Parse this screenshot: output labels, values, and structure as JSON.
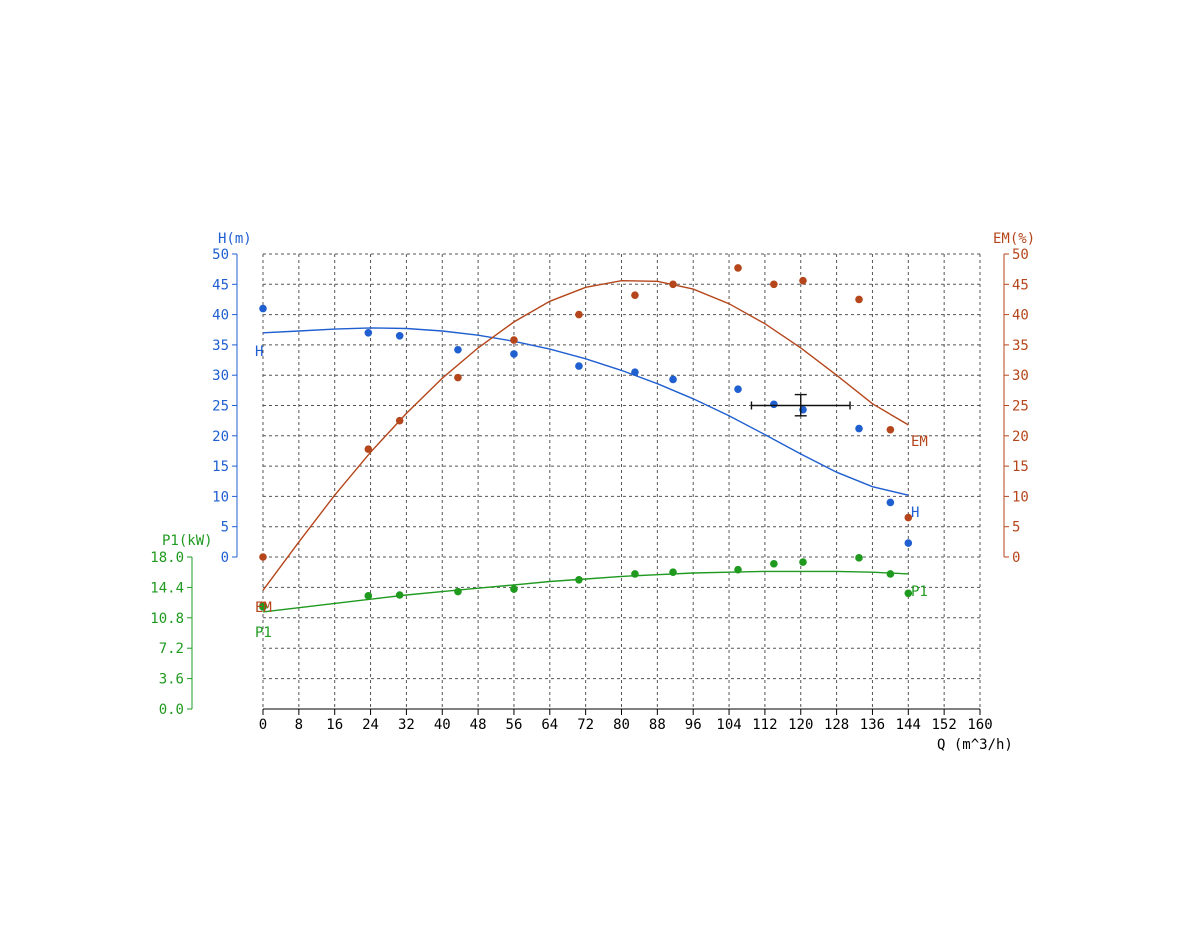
{
  "chart_data": {
    "type": "line",
    "x_axis": {
      "label": "Q (m^3/h)",
      "ticks": [
        "0",
        "8",
        "16",
        "24",
        "32",
        "40",
        "48",
        "56",
        "64",
        "72",
        "80",
        "88",
        "96",
        "104",
        "112",
        "120",
        "128",
        "136",
        "144",
        "152",
        "160"
      ],
      "range": [
        0,
        160
      ]
    },
    "axes": {
      "H": {
        "label": "H(m)",
        "ticks": [
          "0",
          "5",
          "10",
          "15",
          "20",
          "25",
          "30",
          "35",
          "40",
          "45",
          "50"
        ],
        "range": [
          0,
          50
        ],
        "color": "#1f5fd0"
      },
      "EM": {
        "label": "EM(%)",
        "ticks": [
          "0",
          "5",
          "10",
          "15",
          "20",
          "25",
          "30",
          "35",
          "40",
          "45",
          "50"
        ],
        "range": [
          0,
          50
        ],
        "color": "#b5461b"
      },
      "P1": {
        "label": "P1(kW)",
        "ticks": [
          "0.0",
          "3.6",
          "7.2",
          "10.8",
          "14.4",
          "18.0"
        ],
        "range": [
          0,
          18
        ],
        "color": "#1f9a1f"
      }
    },
    "grid": true,
    "series": [
      {
        "name": "H",
        "axis": "H",
        "color": "#1f5fd0",
        "curve": [
          [
            0,
            37.0
          ],
          [
            8,
            37.3
          ],
          [
            16,
            37.6
          ],
          [
            24,
            37.8
          ],
          [
            32,
            37.7
          ],
          [
            40,
            37.3
          ],
          [
            48,
            36.6
          ],
          [
            56,
            35.6
          ],
          [
            64,
            34.3
          ],
          [
            72,
            32.7
          ],
          [
            80,
            30.8
          ],
          [
            88,
            28.6
          ],
          [
            96,
            26.1
          ],
          [
            104,
            23.3
          ],
          [
            112,
            20.2
          ],
          [
            120,
            17.0
          ],
          [
            128,
            14.0
          ],
          [
            136,
            11.6
          ],
          [
            144,
            10.2
          ]
        ],
        "points": [
          [
            0,
            41
          ],
          [
            23.5,
            37
          ],
          [
            30.5,
            36.5
          ],
          [
            43.5,
            34.2
          ],
          [
            56,
            33.5
          ],
          [
            70.5,
            31.5
          ],
          [
            83,
            30.5
          ],
          [
            91.5,
            29.3
          ],
          [
            106,
            27.7
          ],
          [
            114,
            25.2
          ],
          [
            120.5,
            24.3
          ],
          [
            133,
            21.2
          ],
          [
            140,
            9
          ],
          [
            144,
            2.3
          ]
        ]
      },
      {
        "name": "EM",
        "axis": "EM",
        "color": "#b5461b",
        "curve": [
          [
            0,
            -5.5
          ],
          [
            8,
            2.5
          ],
          [
            16,
            10.2
          ],
          [
            24,
            17.3
          ],
          [
            32,
            23.7
          ],
          [
            40,
            29.5
          ],
          [
            48,
            34.5
          ],
          [
            56,
            38.8
          ],
          [
            64,
            42.2
          ],
          [
            72,
            44.5
          ],
          [
            80,
            45.6
          ],
          [
            88,
            45.5
          ],
          [
            96,
            44.2
          ],
          [
            104,
            41.8
          ],
          [
            112,
            38.5
          ],
          [
            120,
            34.5
          ],
          [
            128,
            30.0
          ],
          [
            136,
            25.3
          ],
          [
            144,
            21.8
          ]
        ],
        "points": [
          [
            0,
            0
          ],
          [
            23.5,
            17.8
          ],
          [
            30.5,
            22.5
          ],
          [
            43.5,
            29.6
          ],
          [
            56,
            35.8
          ],
          [
            70.5,
            40
          ],
          [
            83,
            43.2
          ],
          [
            91.5,
            45
          ],
          [
            106,
            47.7
          ],
          [
            114,
            45
          ],
          [
            120.5,
            45.6
          ],
          [
            133,
            42.5
          ],
          [
            140,
            21
          ],
          [
            144,
            6.5
          ],
          [
            0,
            -8
          ]
        ]
      },
      {
        "name": "P1",
        "axis": "P1",
        "color": "#1f9a1f",
        "curve": [
          [
            0,
            11.5
          ],
          [
            8,
            12.0
          ],
          [
            16,
            12.5
          ],
          [
            24,
            13.0
          ],
          [
            32,
            13.5
          ],
          [
            40,
            13.9
          ],
          [
            48,
            14.3
          ],
          [
            56,
            14.7
          ],
          [
            64,
            15.1
          ],
          [
            72,
            15.4
          ],
          [
            80,
            15.7
          ],
          [
            88,
            15.9
          ],
          [
            96,
            16.1
          ],
          [
            104,
            16.2
          ],
          [
            112,
            16.3
          ],
          [
            120,
            16.3
          ],
          [
            128,
            16.3
          ],
          [
            136,
            16.2
          ],
          [
            144,
            16.0
          ]
        ],
        "points": [
          [
            0,
            12.1
          ],
          [
            23.5,
            13.4
          ],
          [
            30.5,
            13.5
          ],
          [
            43.5,
            13.9
          ],
          [
            56,
            14.2
          ],
          [
            70.5,
            15.3
          ],
          [
            83,
            16.0
          ],
          [
            91.5,
            16.2
          ],
          [
            106,
            16.5
          ],
          [
            114,
            17.2
          ],
          [
            120.5,
            17.4
          ],
          [
            133,
            17.9
          ],
          [
            140,
            16.0
          ],
          [
            144,
            13.7
          ]
        ]
      }
    ],
    "duty_point": {
      "q": 120,
      "h": 25,
      "q_range": [
        109,
        131
      ],
      "h_range": [
        23.3,
        26.8
      ],
      "color": "#111111"
    }
  }
}
